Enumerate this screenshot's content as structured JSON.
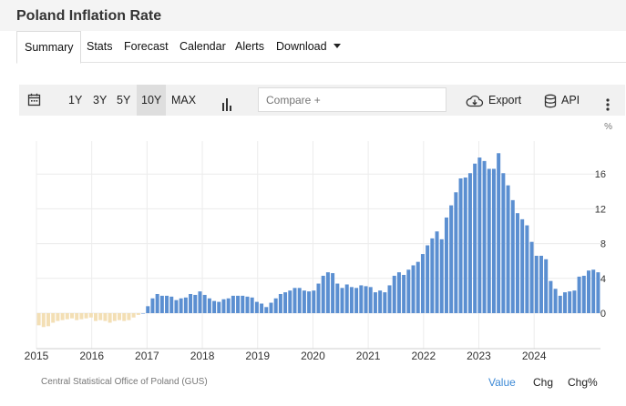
{
  "page": {
    "title": "Poland Inflation Rate"
  },
  "tabs": [
    {
      "label": "Summary"
    },
    {
      "label": "Stats"
    },
    {
      "label": "Forecast"
    },
    {
      "label": "Calendar"
    },
    {
      "label": "Alerts"
    },
    {
      "label": "Download"
    }
  ],
  "toolbar": {
    "ranges": [
      "1Y",
      "3Y",
      "5Y",
      "10Y",
      "MAX"
    ],
    "selected_range": "10Y",
    "compare_placeholder": "Compare +",
    "export_label": "Export",
    "api_label": "API"
  },
  "footer": {
    "source": "Central Statistical Office of Poland (GUS)",
    "modes": [
      "Value",
      "Chg",
      "Chg%"
    ],
    "active_mode": "Value"
  },
  "colors": {
    "positive_bar": "#5b8fd1",
    "negative_bar": "#f3dfb5",
    "active_link": "#3e8ad6"
  },
  "chart_data": {
    "type": "bar",
    "unit": "%",
    "x_ticks": [
      "2015",
      "2016",
      "2017",
      "2018",
      "2019",
      "2020",
      "2021",
      "2022",
      "2023",
      "2024"
    ],
    "y_ticks": [
      0,
      4,
      8,
      12,
      16
    ],
    "ylim": [
      -2,
      20
    ],
    "start": "2015-01",
    "values": [
      -1.4,
      -1.6,
      -1.5,
      -1.1,
      -0.9,
      -0.8,
      -0.7,
      -0.6,
      -0.8,
      -0.7,
      -0.6,
      -0.5,
      -0.9,
      -0.8,
      -0.9,
      -1.1,
      -0.9,
      -0.8,
      -0.9,
      -0.8,
      -0.5,
      -0.2,
      0.0,
      0.8,
      1.7,
      2.2,
      2.0,
      2.0,
      1.9,
      1.5,
      1.7,
      1.8,
      2.2,
      2.1,
      2.5,
      2.1,
      1.7,
      1.4,
      1.3,
      1.6,
      1.7,
      2.0,
      2.0,
      2.0,
      1.9,
      1.8,
      1.3,
      1.1,
      0.7,
      1.2,
      1.7,
      2.2,
      2.4,
      2.6,
      2.9,
      2.9,
      2.6,
      2.5,
      2.6,
      3.4,
      4.3,
      4.7,
      4.6,
      3.4,
      2.9,
      3.3,
      3.0,
      2.9,
      3.2,
      3.1,
      3.0,
      2.4,
      2.6,
      2.4,
      3.2,
      4.3,
      4.7,
      4.4,
      5.0,
      5.5,
      5.9,
      6.8,
      7.8,
      8.6,
      9.4,
      8.5,
      11.0,
      12.4,
      13.9,
      15.5,
      15.6,
      16.1,
      17.2,
      17.9,
      17.5,
      16.6,
      16.6,
      18.4,
      16.1,
      14.7,
      13.0,
      11.5,
      10.8,
      10.1,
      8.2,
      6.6,
      6.6,
      6.2,
      3.7,
      2.8,
      2.0,
      2.4,
      2.5,
      2.6,
      4.2,
      4.3,
      4.9,
      5.0,
      4.7
    ]
  }
}
